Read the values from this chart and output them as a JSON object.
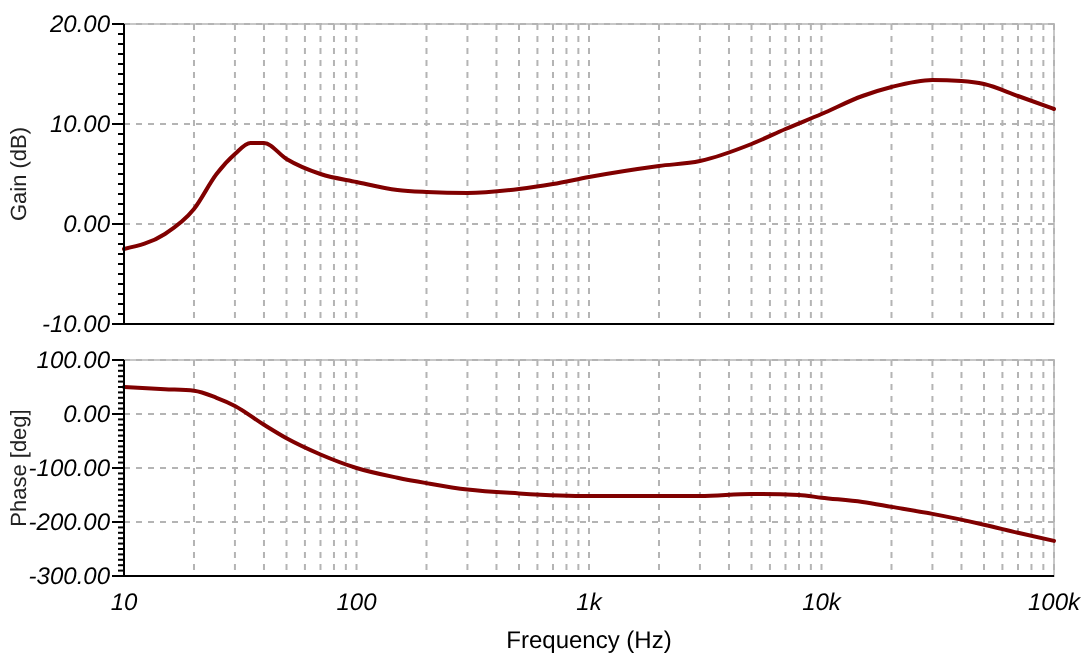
{
  "chart_data": [
    {
      "type": "line",
      "ylabel": "Gain (dB)",
      "log": "x",
      "grid": true,
      "tick_labels": "y",
      "xlim": [
        10,
        100000
      ],
      "ylim": [
        -10,
        20
      ],
      "xticks": [
        {
          "value": 10,
          "label": null
        },
        {
          "value": 20,
          "label": null
        },
        {
          "value": 30,
          "label": null
        },
        {
          "value": 40,
          "label": null
        },
        {
          "value": 50,
          "label": null
        },
        {
          "value": 60,
          "label": null
        },
        {
          "value": 70,
          "label": null
        },
        {
          "value": 80,
          "label": null
        },
        {
          "value": 90,
          "label": null
        },
        {
          "value": 100,
          "label": null
        },
        {
          "value": 200,
          "label": null
        },
        {
          "value": 300,
          "label": null
        },
        {
          "value": 400,
          "label": null
        },
        {
          "value": 500,
          "label": null
        },
        {
          "value": 600,
          "label": null
        },
        {
          "value": 700,
          "label": null
        },
        {
          "value": 800,
          "label": null
        },
        {
          "value": 900,
          "label": null
        },
        {
          "value": 1000,
          "label": null
        },
        {
          "value": 2000,
          "label": null
        },
        {
          "value": 3000,
          "label": null
        },
        {
          "value": 4000,
          "label": null
        },
        {
          "value": 5000,
          "label": null
        },
        {
          "value": 6000,
          "label": null
        },
        {
          "value": 7000,
          "label": null
        },
        {
          "value": 8000,
          "label": null
        },
        {
          "value": 9000,
          "label": null
        },
        {
          "value": 10000,
          "label": null
        },
        {
          "value": 20000,
          "label": null
        },
        {
          "value": 30000,
          "label": null
        },
        {
          "value": 40000,
          "label": null
        },
        {
          "value": 50000,
          "label": null
        },
        {
          "value": 60000,
          "label": null
        },
        {
          "value": 70000,
          "label": null
        },
        {
          "value": 80000,
          "label": null
        },
        {
          "value": 90000,
          "label": null
        },
        {
          "value": 100000,
          "label": null
        }
      ],
      "yticks": [
        {
          "value": -10,
          "label": "-10.00"
        },
        {
          "value": 0,
          "label": "0.00"
        },
        {
          "value": 10,
          "label": "10.00"
        },
        {
          "value": 20,
          "label": "20.00"
        }
      ],
      "x": [
        10,
        15,
        20,
        25,
        30,
        35,
        40,
        50,
        70,
        100,
        150,
        200,
        300,
        500,
        700,
        1000,
        2000,
        3000,
        5000,
        7000,
        10000,
        15000,
        20000,
        30000,
        40000,
        50000,
        70000,
        100000
      ],
      "series": [
        {
          "color": "#800000",
          "values": [
            -2.5,
            -1,
            1.5,
            5,
            7,
            8.1,
            8.1,
            6.5,
            5,
            4.2,
            3.4,
            3.2,
            3.1,
            3.5,
            4,
            4.7,
            5.8,
            6.3,
            8,
            9.5,
            11,
            12.8,
            13.7,
            14.4,
            14.3,
            14,
            12.8,
            11.5
          ]
        }
      ]
    },
    {
      "type": "line",
      "ylabel": "Phase [deg]",
      "xlabel": "Frequency (Hz)",
      "log": "x",
      "grid": true,
      "xlim": [
        10,
        100000
      ],
      "ylim": [
        -300,
        100
      ],
      "xticks": [
        {
          "value": 10,
          "label": "10"
        },
        {
          "value": 20,
          "label": null
        },
        {
          "value": 30,
          "label": null
        },
        {
          "value": 40,
          "label": null
        },
        {
          "value": 50,
          "label": null
        },
        {
          "value": 60,
          "label": null
        },
        {
          "value": 70,
          "label": null
        },
        {
          "value": 80,
          "label": null
        },
        {
          "value": 90,
          "label": null
        },
        {
          "value": 100,
          "label": "100"
        },
        {
          "value": 200,
          "label": null
        },
        {
          "value": 300,
          "label": null
        },
        {
          "value": 400,
          "label": null
        },
        {
          "value": 500,
          "label": null
        },
        {
          "value": 600,
          "label": null
        },
        {
          "value": 700,
          "label": null
        },
        {
          "value": 800,
          "label": null
        },
        {
          "value": 900,
          "label": null
        },
        {
          "value": 1000,
          "label": "1k"
        },
        {
          "value": 2000,
          "label": null
        },
        {
          "value": 3000,
          "label": null
        },
        {
          "value": 4000,
          "label": null
        },
        {
          "value": 5000,
          "label": null
        },
        {
          "value": 6000,
          "label": null
        },
        {
          "value": 7000,
          "label": null
        },
        {
          "value": 8000,
          "label": null
        },
        {
          "value": 9000,
          "label": null
        },
        {
          "value": 10000,
          "label": "10k"
        },
        {
          "value": 20000,
          "label": null
        },
        {
          "value": 30000,
          "label": null
        },
        {
          "value": 40000,
          "label": null
        },
        {
          "value": 50000,
          "label": null
        },
        {
          "value": 60000,
          "label": null
        },
        {
          "value": 70000,
          "label": null
        },
        {
          "value": 80000,
          "label": null
        },
        {
          "value": 90000,
          "label": null
        },
        {
          "value": 100000,
          "label": "100k"
        }
      ],
      "yticks": [
        {
          "value": -300,
          "label": "-300.00"
        },
        {
          "value": -200,
          "label": "-200.00"
        },
        {
          "value": -100,
          "label": "-100.00"
        },
        {
          "value": 0,
          "label": "0.00"
        },
        {
          "value": 100,
          "label": "100.00"
        }
      ],
      "x": [
        10,
        15,
        20,
        25,
        30,
        40,
        50,
        70,
        100,
        150,
        200,
        300,
        500,
        1000,
        3000,
        5000,
        8000,
        10000,
        15000,
        20000,
        30000,
        50000,
        70000,
        100000
      ],
      "series": [
        {
          "color": "#800000",
          "values": [
            50,
            46,
            43,
            30,
            15,
            -20,
            -45,
            -75,
            -100,
            -118,
            -128,
            -140,
            -147,
            -152,
            -152,
            -148,
            -150,
            -155,
            -163,
            -172,
            -185,
            -205,
            -220,
            -235
          ]
        }
      ]
    }
  ]
}
